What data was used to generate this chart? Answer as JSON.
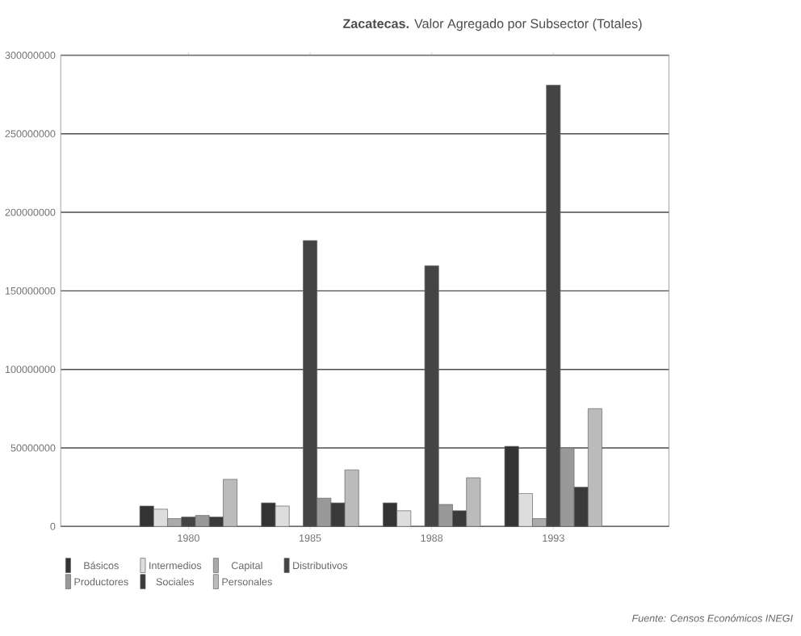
{
  "chart_data": {
    "type": "bar",
    "title": "**Zacatecas.** Valor Agregado por Subsector (Totales)",
    "categories": [
      "1980",
      "1985",
      "1988",
      "1993"
    ],
    "series": [
      {
        "name": "Básicos",
        "color": "#333333",
        "values": [
          13000000,
          15000000,
          15000000,
          51000000
        ]
      },
      {
        "name": "Intermedios",
        "color": "#dddddd",
        "values": [
          11000000,
          13000000,
          10000000,
          21000000
        ]
      },
      {
        "name": "Capital",
        "color": "#aaaaaa",
        "values": [
          5000000,
          null,
          null,
          5000000
        ]
      },
      {
        "name": "Distributivos",
        "color": "#444444",
        "values": [
          6000000,
          182000000,
          166000000,
          281000000
        ]
      },
      {
        "name": "Productores",
        "color": "#999999",
        "values": [
          7000000,
          18000000,
          14000000,
          50000000
        ]
      },
      {
        "name": "Sociales",
        "color": "#3a3a3a",
        "values": [
          6000000,
          15000000,
          10000000,
          25000000
        ]
      },
      {
        "name": "Personales",
        "color": "#bbbbbb",
        "values": [
          30000000,
          36000000,
          31000000,
          75000000
        ]
      }
    ],
    "ylim": [
      0,
      300000000
    ],
    "yticks": [
      0,
      50000000,
      100000000,
      150000000,
      200000000,
      250000000,
      300000000
    ],
    "grid": "y",
    "legend": "bottom",
    "annotations": [
      "Fuente: Censos Económicos INEGI"
    ]
  }
}
